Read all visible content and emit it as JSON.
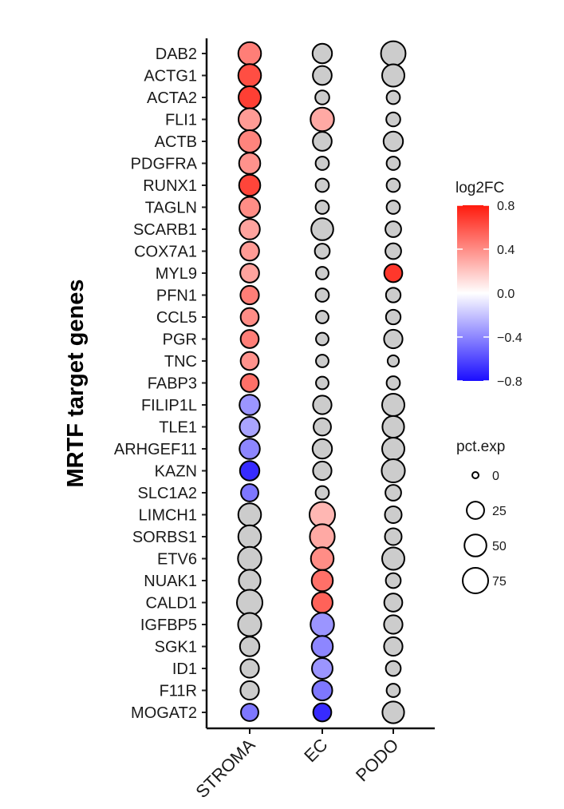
{
  "chart_data": {
    "type": "dotplot",
    "title": "",
    "xlabel": "",
    "ylabel": "MRTF target genes",
    "categories": [
      "STROMA",
      "EC",
      "PODO"
    ],
    "genes": [
      "DAB2",
      "ACTG1",
      "ACTA2",
      "FLI1",
      "ACTB",
      "PDGFRA",
      "RUNX1",
      "TAGLN",
      "SCARB1",
      "COX7A1",
      "MYL9",
      "PFN1",
      "CCL5",
      "PGR",
      "TNC",
      "FABP3",
      "FILIP1L",
      "TLE1",
      "ARHGEF11",
      "KAZN",
      "SLC1A2",
      "LIMCH1",
      "SORBS1",
      "ETV6",
      "NUAK1",
      "CALD1",
      "IGFBP5",
      "SGK1",
      "ID1",
      "F11R",
      "MOGAT2"
    ],
    "series": [
      {
        "name": "STROMA",
        "pct_exp": [
          55,
          55,
          52,
          52,
          52,
          45,
          45,
          42,
          40,
          32,
          32,
          30,
          28,
          28,
          28,
          28,
          40,
          38,
          40,
          35,
          25,
          55,
          55,
          60,
          48,
          75,
          58,
          35,
          30,
          30,
          25
        ],
        "log2fc": [
          0.45,
          0.62,
          0.67,
          0.35,
          0.43,
          0.38,
          0.65,
          0.4,
          0.32,
          0.35,
          0.32,
          0.45,
          0.4,
          0.45,
          0.38,
          0.5,
          -0.35,
          -0.3,
          -0.4,
          -0.7,
          -0.45,
          null,
          null,
          null,
          null,
          null,
          null,
          null,
          null,
          null,
          -0.45
        ]
      },
      {
        "name": "EC",
        "pct_exp": [
          35,
          32,
          12,
          60,
          32,
          10,
          10,
          10,
          50,
          15,
          8,
          10,
          8,
          8,
          8,
          8,
          30,
          25,
          35,
          30,
          10,
          75,
          70,
          55,
          45,
          42,
          60,
          45,
          42,
          38,
          28
        ],
        "log2fc": [
          null,
          null,
          null,
          0.3,
          null,
          null,
          null,
          null,
          null,
          null,
          null,
          null,
          null,
          null,
          null,
          null,
          null,
          null,
          null,
          null,
          null,
          0.25,
          0.3,
          0.4,
          0.5,
          0.55,
          -0.35,
          -0.4,
          -0.35,
          -0.45,
          -0.7
        ]
      },
      {
        "name": "PODO",
        "pct_exp": [
          68,
          52,
          10,
          12,
          35,
          10,
          10,
          10,
          18,
          18,
          28,
          14,
          14,
          30,
          5,
          10,
          52,
          48,
          52,
          58,
          18,
          22,
          22,
          52,
          15,
          28,
          30,
          30,
          15,
          10,
          48
        ],
        "log2fc": [
          null,
          null,
          null,
          null,
          null,
          null,
          null,
          null,
          null,
          null,
          0.7,
          null,
          null,
          null,
          null,
          null,
          null,
          null,
          null,
          null,
          null,
          null,
          null,
          null,
          null,
          null,
          null,
          null,
          null,
          null,
          null
        ]
      }
    ],
    "colorbar": {
      "title": "log2FC",
      "range": [
        -0.8,
        0.8
      ],
      "ticks": [
        "0.8",
        "0.4",
        "0.0",
        "−0.4",
        "−0.8"
      ],
      "tick_values": [
        0.8,
        0.4,
        0.0,
        -0.4,
        -0.8
      ],
      "colors": {
        "low": "#1a0dff",
        "mid": "#ffffff",
        "high": "#ff1a0d"
      },
      "na_color": "#cccccc"
    },
    "size_legend": {
      "title": "pct.exp",
      "values": [
        0,
        25,
        50,
        75
      ],
      "labels": [
        "0",
        "25",
        "50",
        "75"
      ]
    },
    "grid": false,
    "legend_position": "right"
  }
}
